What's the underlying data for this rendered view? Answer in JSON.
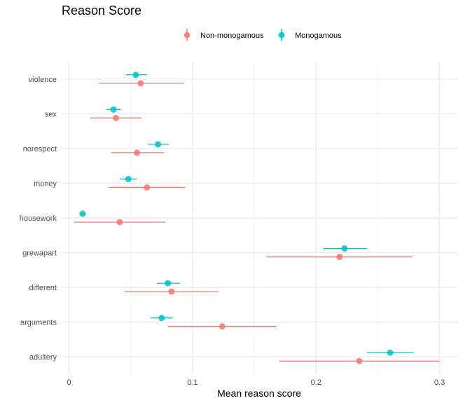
{
  "chart_data": {
    "type": "scatter",
    "title": "Reason Score",
    "xlabel": "Mean reason score",
    "ylabel": "",
    "xlim": [
      -0.006,
      0.315
    ],
    "x_ticks": [
      0,
      0.1,
      0.2,
      0.3
    ],
    "x_tick_labels": [
      "0",
      "0.1",
      "0.2",
      "0.3"
    ],
    "categories": [
      "violence",
      "sex",
      "norespect",
      "money",
      "housework",
      "grewapart",
      "different",
      "arguments",
      "adultery"
    ],
    "grid": true,
    "legend_position": "top",
    "series": [
      {
        "name": "Non-monogamous",
        "color": "#F8766D",
        "points": [
          {
            "category": "violence",
            "mean": 0.058,
            "low": 0.024,
            "high": 0.093
          },
          {
            "category": "sex",
            "mean": 0.038,
            "low": 0.017,
            "high": 0.059
          },
          {
            "category": "norespect",
            "mean": 0.055,
            "low": 0.034,
            "high": 0.077
          },
          {
            "category": "money",
            "mean": 0.063,
            "low": 0.032,
            "high": 0.094
          },
          {
            "category": "housework",
            "mean": 0.041,
            "low": 0.004,
            "high": 0.078
          },
          {
            "category": "grewapart",
            "mean": 0.219,
            "low": 0.16,
            "high": 0.278
          },
          {
            "category": "different",
            "mean": 0.083,
            "low": 0.045,
            "high": 0.121
          },
          {
            "category": "arguments",
            "mean": 0.124,
            "low": 0.08,
            "high": 0.168
          },
          {
            "category": "adultery",
            "mean": 0.235,
            "low": 0.17,
            "high": 0.3
          }
        ]
      },
      {
        "name": "Monogamous",
        "color": "#00BFC4",
        "points": [
          {
            "category": "violence",
            "mean": 0.054,
            "low": 0.046,
            "high": 0.063
          },
          {
            "category": "sex",
            "mean": 0.036,
            "low": 0.03,
            "high": 0.042
          },
          {
            "category": "norespect",
            "mean": 0.072,
            "low": 0.064,
            "high": 0.081
          },
          {
            "category": "money",
            "mean": 0.048,
            "low": 0.041,
            "high": 0.055
          },
          {
            "category": "housework",
            "mean": 0.011,
            "low": 0.009,
            "high": 0.013
          },
          {
            "category": "grewapart",
            "mean": 0.223,
            "low": 0.206,
            "high": 0.241
          },
          {
            "category": "different",
            "mean": 0.08,
            "low": 0.071,
            "high": 0.09
          },
          {
            "category": "arguments",
            "mean": 0.075,
            "low": 0.066,
            "high": 0.084
          },
          {
            "category": "adultery",
            "mean": 0.26,
            "low": 0.241,
            "high": 0.279
          }
        ]
      }
    ]
  }
}
